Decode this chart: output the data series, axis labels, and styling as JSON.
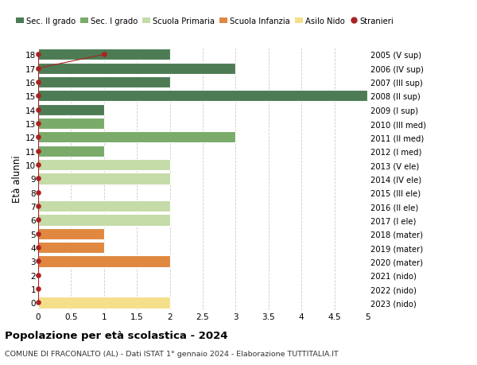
{
  "ages": [
    18,
    17,
    16,
    15,
    14,
    13,
    12,
    11,
    10,
    9,
    8,
    7,
    6,
    5,
    4,
    3,
    2,
    1,
    0
  ],
  "right_labels": [
    "2005 (V sup)",
    "2006 (IV sup)",
    "2007 (III sup)",
    "2008 (II sup)",
    "2009 (I sup)",
    "2010 (III med)",
    "2011 (II med)",
    "2012 (I med)",
    "2013 (V ele)",
    "2014 (IV ele)",
    "2015 (III ele)",
    "2016 (II ele)",
    "2017 (I ele)",
    "2018 (mater)",
    "2019 (mater)",
    "2020 (mater)",
    "2021 (nido)",
    "2022 (nido)",
    "2023 (nido)"
  ],
  "bar_values": [
    2,
    3,
    2,
    5,
    1,
    1,
    3,
    1,
    2,
    2,
    0,
    2,
    2,
    1,
    1,
    2,
    0,
    0,
    2
  ],
  "bar_colors": [
    "#4d7c54",
    "#4d7c54",
    "#4d7c54",
    "#4d7c54",
    "#4d7c54",
    "#7aab6a",
    "#7aab6a",
    "#7aab6a",
    "#c5dba8",
    "#c5dba8",
    "#c5dba8",
    "#c5dba8",
    "#c5dba8",
    "#e08840",
    "#e08840",
    "#e08840",
    "#f5df8a",
    "#f5df8a",
    "#f5df8a"
  ],
  "stranieri_ages": [
    17,
    18
  ],
  "stranieri_values": [
    0,
    1
  ],
  "stranieri_color": "#aa2222",
  "legend_labels": [
    "Sec. II grado",
    "Sec. I grado",
    "Scuola Primaria",
    "Scuola Infanzia",
    "Asilo Nido",
    "Stranieri"
  ],
  "legend_colors": [
    "#4d7c54",
    "#7aab6a",
    "#c5dba8",
    "#e08840",
    "#f5df8a",
    "#aa2222"
  ],
  "xlim": [
    0,
    5.0
  ],
  "xticks": [
    0,
    0.5,
    1.0,
    1.5,
    2.0,
    2.5,
    3.0,
    3.5,
    4.0,
    4.5,
    5.0
  ],
  "xlabel_left": "Età alunni",
  "title": "Popolazione per età scolastica - 2024",
  "subtitle": "COMUNE DI FRACONALTO (AL) - Dati ISTAT 1° gennaio 2024 - Elaborazione TUTTITALIA.IT",
  "bg_color": "#ffffff",
  "plot_bg_color": "#ffffff",
  "bar_height": 0.82,
  "grid_color": "#cccccc"
}
